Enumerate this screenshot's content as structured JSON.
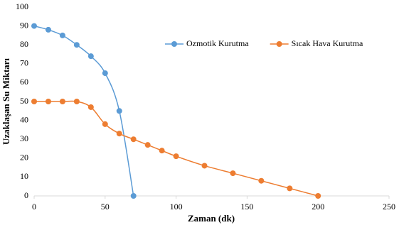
{
  "chart_data": {
    "type": "scatter-line",
    "x_label": "Zaman (dk)",
    "y_label": "Uzaklaşan Su Miktarı",
    "xlim": [
      0,
      250
    ],
    "xticks": [
      0,
      50,
      100,
      150,
      200,
      250
    ],
    "ylim": [
      0,
      100
    ],
    "yticks": [
      0,
      10,
      20,
      30,
      40,
      50,
      60,
      70,
      80,
      90,
      100
    ],
    "grid": false,
    "legend": "top-right",
    "smooth": true,
    "series": [
      {
        "name": "Ozmotik Kurutma",
        "color": "#5b9bd5",
        "x": [
          0,
          10,
          20,
          30,
          40,
          50,
          60,
          70
        ],
        "values": [
          90,
          88,
          85,
          80,
          74,
          65,
          45,
          0
        ]
      },
      {
        "name": "Sıcak Hava Kurutma",
        "color": "#ed7d31",
        "x": [
          0,
          10,
          20,
          30,
          40,
          50,
          60,
          70,
          80,
          90,
          100,
          120,
          140,
          160,
          180,
          200
        ],
        "values": [
          50,
          50,
          50,
          50,
          47,
          38,
          33,
          30,
          27,
          24,
          21,
          16,
          12,
          8,
          4,
          0
        ]
      }
    ]
  }
}
